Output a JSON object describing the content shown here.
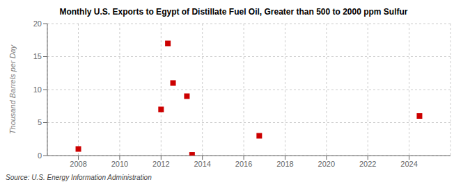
{
  "chart_data": {
    "type": "scatter",
    "title": "Monthly U.S. Exports to Egypt of Distillate Fuel Oil, Greater than 500 to 2000 ppm Sulfur",
    "ylabel": "Thousand Barrels per Day",
    "annotations": [
      "Source: U.S. Energy Information Administration"
    ],
    "x": [
      2008.0,
      2012.0,
      2012.33,
      2012.58,
      2013.25,
      2013.5,
      2016.75,
      2024.5
    ],
    "values": [
      1.0,
      7.0,
      17.0,
      11.0,
      9.0,
      0.1,
      3.0,
      6.0
    ],
    "color": "#cc0000",
    "marker": "square",
    "xlim": [
      2006.5,
      2026.0
    ],
    "ylim": [
      0,
      20
    ],
    "xticks": [
      2008,
      2010,
      2012,
      2014,
      2016,
      2018,
      2020,
      2022,
      2024
    ],
    "yticks": [
      0,
      5,
      10,
      15,
      20
    ],
    "grid": true
  }
}
